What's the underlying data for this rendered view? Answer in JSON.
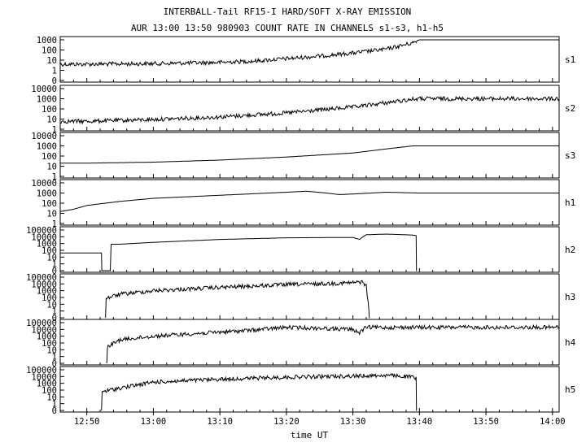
{
  "chart_data": {
    "type": "line",
    "title": "INTERBALL-Tail RF15-I HARD/SOFT X-RAY EMISSION",
    "subtitle": "AUR 13:00 13:50 980903  COUNT RATE IN CHANNELS s1-s3, h1-h5",
    "xlabel": "time UT",
    "x_tick_labels": [
      "12:50",
      "13:00",
      "13:10",
      "13:20",
      "13:30",
      "13:40",
      "13:50",
      "14:00"
    ],
    "x_tick_minutes": [
      770,
      780,
      790,
      800,
      810,
      820,
      830,
      840
    ],
    "xlim_minutes": [
      766,
      841
    ],
    "yscale": "log",
    "panels": [
      {
        "name": "s1",
        "ylim": [
          1,
          1000
        ],
        "y_tick_labels": [
          "1000",
          "100",
          "10",
          "1",
          "0"
        ],
        "y_tick_values": [
          1000,
          100,
          10,
          1,
          0
        ],
        "series": [
          {
            "x": [
              766,
              770,
              780,
              790,
              795,
              800,
              805,
              810,
              815,
              819,
              820,
              830,
              841
            ],
            "y": [
              4,
              4,
              4.5,
              6,
              8,
              14,
              25,
              50,
              120,
              500,
              1000,
              1000,
              1000
            ],
            "noise": true
          }
        ]
      },
      {
        "name": "s2",
        "ylim": [
          1,
          10000
        ],
        "y_tick_labels": [
          "10000",
          "1000",
          "100",
          "10",
          "1"
        ],
        "y_tick_values": [
          10000,
          1000,
          100,
          10,
          1
        ],
        "series": [
          {
            "x": [
              766,
              770,
              780,
              790,
              800,
              810,
              815,
              819,
              820,
              830,
              841
            ],
            "y": [
              6,
              6,
              9,
              16,
              40,
              150,
              400,
              900,
              1000,
              1000,
              1000
            ],
            "noise": true
          }
        ]
      },
      {
        "name": "s3",
        "ylim": [
          1,
          10000
        ],
        "y_tick_labels": [
          "10000",
          "1000",
          "100",
          "10",
          "1"
        ],
        "y_tick_values": [
          10000,
          1000,
          100,
          10,
          1
        ],
        "series": [
          {
            "x": [
              766,
              770,
              780,
              790,
              800,
              810,
              815,
              819,
              820,
              830,
              841
            ],
            "y": [
              20,
              20,
              25,
              40,
              80,
              200,
              500,
              1000,
              1000,
              1000,
              1000
            ],
            "noise": false
          }
        ]
      },
      {
        "name": "h1",
        "ylim": [
          1,
          10000
        ],
        "y_tick_labels": [
          "10000",
          "1000",
          "100",
          "10",
          "1"
        ],
        "y_tick_values": [
          10000,
          1000,
          100,
          10,
          1
        ],
        "series": [
          {
            "x": [
              766,
              768,
              770,
              775,
              780,
              790,
              800,
              803,
              806,
              808,
              810,
              815,
              820,
              830,
              841
            ],
            "y": [
              15,
              25,
              60,
              150,
              300,
              600,
              1200,
              1500,
              1000,
              700,
              800,
              1200,
              1000,
              1000,
              1000
            ],
            "noise": false
          }
        ]
      },
      {
        "name": "h2",
        "ylim": [
          0,
          100000
        ],
        "y_tick_labels": [
          "100000",
          "10000",
          "1000",
          "100",
          "10",
          "1",
          "0"
        ],
        "y_tick_values": [
          100000,
          10000,
          1000,
          100,
          10,
          1,
          0
        ],
        "series": [
          {
            "x": [
              766,
              770,
              772.2,
              772.3,
              775,
              780,
              790,
              800,
              810,
              811,
              811.5,
              812,
              815,
              819,
              819.5,
              819.6
            ],
            "y": [
              40,
              40,
              40,
              0,
              800,
              1500,
              4000,
              7000,
              8000,
              4000,
              10000,
              20000,
              25000,
              18000,
              15000,
              0
            ],
            "noise": false
          }
        ]
      },
      {
        "name": "h3",
        "ylim": [
          0,
          100000
        ],
        "y_tick_labels": [
          "100000",
          "10000",
          "1000",
          "100",
          "10",
          "1",
          "0"
        ],
        "y_tick_values": [
          100000,
          10000,
          1000,
          100,
          10,
          1,
          0
        ],
        "series": [
          {
            "x": [
              772.8,
              773,
              775,
              780,
              790,
              800,
              805,
              810,
              811.5,
              812,
              812.4,
              812.5
            ],
            "y": [
              0,
              80,
              300,
              1000,
              3000,
              8000,
              10000,
              15000,
              20000,
              5000,
              1,
              0
            ],
            "noise": true
          }
        ]
      },
      {
        "name": "h4",
        "ylim": [
          0,
          100000
        ],
        "y_tick_labels": [
          "100000",
          "10000",
          "1000",
          "100",
          "10",
          "1",
          "0"
        ],
        "y_tick_values": [
          100000,
          10000,
          1000,
          100,
          10,
          1,
          0
        ],
        "series": [
          {
            "x": [
              773,
              773.2,
              775,
              780,
              790,
              795,
              800,
              805,
              810,
              811,
              811.5,
              812,
              815,
              820,
              830,
              841
            ],
            "y": [
              0,
              30,
              300,
              1000,
              4000,
              8000,
              20000,
              15000,
              10000,
              3000,
              9000,
              20000,
              20000,
              20000,
              20000,
              20000
            ],
            "noise": true
          }
        ]
      },
      {
        "name": "h5",
        "ylim": [
          0,
          100000
        ],
        "y_tick_labels": [
          "100000",
          "10000",
          "1000",
          "100",
          "10",
          "1",
          "0"
        ],
        "y_tick_values": [
          100000,
          10000,
          1000,
          100,
          10,
          1,
          0
        ],
        "series": [
          {
            "x": [
              772.2,
              772.4,
              775,
              780,
              790,
              800,
              810,
              815,
              818,
              819,
              819.5,
              819.6
            ],
            "y": [
              0,
              60,
              200,
              1500,
              4000,
              8000,
              12000,
              15000,
              10000,
              8000,
              5000,
              0
            ],
            "noise": true
          }
        ]
      }
    ],
    "grid": false,
    "legend": "none"
  }
}
